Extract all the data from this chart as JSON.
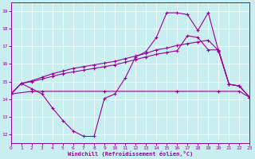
{
  "bg_color": "#c8eef0",
  "line_color": "#990099",
  "grid_color": "#ffffff",
  "xlim": [
    0,
    23
  ],
  "ylim": [
    11.5,
    19.5
  ],
  "xticks": [
    0,
    1,
    2,
    3,
    4,
    5,
    6,
    7,
    8,
    9,
    10,
    11,
    12,
    13,
    14,
    15,
    16,
    17,
    18,
    19,
    20,
    21,
    22,
    23
  ],
  "yticks": [
    12,
    13,
    14,
    15,
    16,
    17,
    18,
    19
  ],
  "xlabel": "Windchill (Refroidissement éolien,°C)",
  "line1_x": [
    0,
    1,
    2,
    3,
    4,
    5,
    6,
    7,
    8,
    9,
    10,
    11,
    12,
    13,
    14,
    15,
    16,
    17,
    18,
    19,
    20,
    21,
    22,
    23
  ],
  "line1_y": [
    14.3,
    14.9,
    14.6,
    14.3,
    13.5,
    12.8,
    12.2,
    11.9,
    11.9,
    14.05,
    14.3,
    15.2,
    16.4,
    16.7,
    17.5,
    18.9,
    18.9,
    18.8,
    17.9,
    18.9,
    16.7,
    14.85,
    14.75,
    14.1
  ],
  "line2_x": [
    0,
    2,
    3,
    9,
    16,
    20,
    22,
    23
  ],
  "line2_y": [
    14.3,
    14.45,
    14.45,
    14.45,
    14.45,
    14.45,
    14.45,
    14.1
  ],
  "line3_x": [
    0,
    1,
    2,
    3,
    4,
    5,
    6,
    7,
    8,
    9,
    10,
    11,
    12,
    13,
    14,
    15,
    16,
    17,
    18,
    19,
    20,
    21,
    22,
    23
  ],
  "line3_y": [
    14.3,
    14.9,
    15.05,
    15.25,
    15.45,
    15.6,
    15.75,
    15.85,
    15.95,
    16.05,
    16.15,
    16.3,
    16.45,
    16.6,
    16.8,
    16.9,
    17.05,
    17.15,
    17.25,
    17.35,
    16.75,
    14.85,
    14.75,
    14.1
  ],
  "line4_x": [
    0,
    1,
    2,
    3,
    4,
    5,
    6,
    7,
    8,
    9,
    10,
    11,
    12,
    13,
    14,
    15,
    16,
    17,
    18,
    19,
    20,
    21,
    22,
    23
  ],
  "line4_y": [
    14.3,
    14.9,
    15.0,
    15.15,
    15.3,
    15.45,
    15.55,
    15.65,
    15.75,
    15.85,
    15.95,
    16.1,
    16.25,
    16.4,
    16.55,
    16.65,
    16.75,
    17.6,
    17.5,
    16.8,
    16.8,
    14.85,
    14.75,
    14.1
  ]
}
